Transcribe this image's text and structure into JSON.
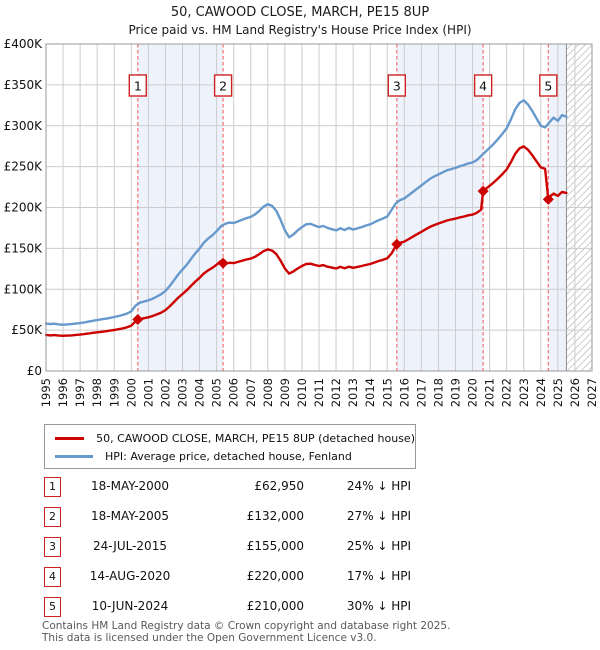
{
  "header": {
    "title": "50, CAWOOD CLOSE, MARCH, PE15 8UP",
    "subtitle": "Price paid vs. HM Land Registry's House Price Index (HPI)"
  },
  "chart_data": {
    "type": "line",
    "title": "50, CAWOOD CLOSE, MARCH, PE15 8UP",
    "subtitle": "Price paid vs. HM Land Registry's House Price Index (HPI)",
    "xlim": [
      1995,
      2027
    ],
    "ylim": [
      0,
      400000
    ],
    "grid": true,
    "legend_position": "below",
    "y_ticks": [
      {
        "value": 0,
        "label": "£0"
      },
      {
        "value": 50000,
        "label": "£50K"
      },
      {
        "value": 100000,
        "label": "£100K"
      },
      {
        "value": 150000,
        "label": "£150K"
      },
      {
        "value": 200000,
        "label": "£200K"
      },
      {
        "value": 250000,
        "label": "£250K"
      },
      {
        "value": 300000,
        "label": "£300K"
      },
      {
        "value": 350000,
        "label": "£350K"
      },
      {
        "value": 400000,
        "label": "£400K"
      }
    ],
    "x_ticks": [
      1995,
      1996,
      1997,
      1998,
      1999,
      2000,
      2001,
      2002,
      2003,
      2004,
      2005,
      2006,
      2007,
      2008,
      2009,
      2010,
      2011,
      2012,
      2013,
      2014,
      2015,
      2016,
      2017,
      2018,
      2019,
      2020,
      2021,
      2022,
      2023,
      2024,
      2025,
      2026,
      2027
    ],
    "shaded_periods": [
      [
        2000.38,
        2005.38
      ],
      [
        2015.56,
        2020.62
      ],
      [
        2024.44,
        2025.5
      ]
    ],
    "future_region": {
      "start": 2025.5,
      "end": 2027
    },
    "colors": {
      "property": "#cc0000",
      "hpi": "#6699cc",
      "sale_line": "#f47a7a",
      "band": "#eef2fb",
      "grid": "#cccccc",
      "border": "#999999",
      "hatch": "#c4c4c4"
    },
    "sales": [
      {
        "label": "1",
        "year": 2000.38,
        "price": 62950
      },
      {
        "label": "2",
        "year": 2005.38,
        "price": 132000
      },
      {
        "label": "3",
        "year": 2015.56,
        "price": 155000
      },
      {
        "label": "4",
        "year": 2020.62,
        "price": 220000
      },
      {
        "label": "5",
        "year": 2024.44,
        "price": 210000
      }
    ],
    "series": [
      {
        "name": "HPI: Average price, detached house, Fenland",
        "color": "#6699cc",
        "points": [
          [
            1995,
            58000
          ],
          [
            1995.25,
            57400
          ],
          [
            1995.5,
            57800
          ],
          [
            1995.75,
            57000
          ],
          [
            1996,
            56600
          ],
          [
            1996.25,
            57000
          ],
          [
            1996.5,
            57400
          ],
          [
            1996.75,
            58000
          ],
          [
            1997,
            58600
          ],
          [
            1997.25,
            59400
          ],
          [
            1997.5,
            60400
          ],
          [
            1997.75,
            61400
          ],
          [
            1998,
            62400
          ],
          [
            1998.25,
            63200
          ],
          [
            1998.5,
            64000
          ],
          [
            1998.75,
            65000
          ],
          [
            1999,
            66000
          ],
          [
            1999.25,
            67200
          ],
          [
            1999.5,
            68600
          ],
          [
            1999.75,
            70200
          ],
          [
            2000,
            73000
          ],
          [
            2000.25,
            80000
          ],
          [
            2000.5,
            83500
          ],
          [
            2000.75,
            85000
          ],
          [
            2001,
            86500
          ],
          [
            2001.25,
            88500
          ],
          [
            2001.5,
            91000
          ],
          [
            2001.75,
            94000
          ],
          [
            2002,
            98000
          ],
          [
            2002.25,
            104000
          ],
          [
            2002.5,
            111000
          ],
          [
            2002.75,
            118000
          ],
          [
            2003,
            124000
          ],
          [
            2003.25,
            130000
          ],
          [
            2003.5,
            137000
          ],
          [
            2003.75,
            144000
          ],
          [
            2004,
            150000
          ],
          [
            2004.25,
            157000
          ],
          [
            2004.5,
            162000
          ],
          [
            2004.75,
            166000
          ],
          [
            2005,
            171000
          ],
          [
            2005.25,
            177000
          ],
          [
            2005.5,
            180000
          ],
          [
            2005.75,
            181500
          ],
          [
            2006,
            181000
          ],
          [
            2006.25,
            183000
          ],
          [
            2006.5,
            185000
          ],
          [
            2006.75,
            187000
          ],
          [
            2007,
            188500
          ],
          [
            2007.25,
            191500
          ],
          [
            2007.5,
            196000
          ],
          [
            2007.75,
            201000
          ],
          [
            2008,
            204000
          ],
          [
            2008.25,
            202000
          ],
          [
            2008.5,
            196000
          ],
          [
            2008.75,
            185000
          ],
          [
            2009,
            172000
          ],
          [
            2009.25,
            163500
          ],
          [
            2009.5,
            167000
          ],
          [
            2009.75,
            172000
          ],
          [
            2010,
            176000
          ],
          [
            2010.25,
            179500
          ],
          [
            2010.5,
            180000
          ],
          [
            2010.75,
            178000
          ],
          [
            2011,
            176000
          ],
          [
            2011.25,
            177500
          ],
          [
            2011.5,
            175000
          ],
          [
            2011.75,
            173500
          ],
          [
            2012,
            172000
          ],
          [
            2012.25,
            174500
          ],
          [
            2012.5,
            172500
          ],
          [
            2012.75,
            175000
          ],
          [
            2013,
            173000
          ],
          [
            2013.25,
            174500
          ],
          [
            2013.5,
            176000
          ],
          [
            2013.75,
            178000
          ],
          [
            2014,
            179500
          ],
          [
            2014.25,
            182000
          ],
          [
            2014.5,
            184500
          ],
          [
            2014.75,
            186500
          ],
          [
            2015,
            189000
          ],
          [
            2015.25,
            197000
          ],
          [
            2015.5,
            205000
          ],
          [
            2015.75,
            209000
          ],
          [
            2016,
            211000
          ],
          [
            2016.25,
            215000
          ],
          [
            2016.5,
            219000
          ],
          [
            2016.75,
            223000
          ],
          [
            2017,
            227000
          ],
          [
            2017.25,
            231000
          ],
          [
            2017.5,
            235000
          ],
          [
            2017.75,
            238000
          ],
          [
            2018,
            240500
          ],
          [
            2018.25,
            243000
          ],
          [
            2018.5,
            245500
          ],
          [
            2018.75,
            247000
          ],
          [
            2019,
            248500
          ],
          [
            2019.25,
            250500
          ],
          [
            2019.5,
            252000
          ],
          [
            2019.75,
            254000
          ],
          [
            2020,
            255000
          ],
          [
            2020.25,
            258000
          ],
          [
            2020.5,
            263000
          ],
          [
            2020.75,
            268000
          ],
          [
            2021,
            273000
          ],
          [
            2021.25,
            278000
          ],
          [
            2021.5,
            284000
          ],
          [
            2021.75,
            290000
          ],
          [
            2022,
            297000
          ],
          [
            2022.25,
            308000
          ],
          [
            2022.5,
            320000
          ],
          [
            2022.75,
            328000
          ],
          [
            2023,
            331000
          ],
          [
            2023.25,
            326000
          ],
          [
            2023.5,
            318000
          ],
          [
            2023.75,
            309000
          ],
          [
            2024,
            300000
          ],
          [
            2024.25,
            298000
          ],
          [
            2024.5,
            304000
          ],
          [
            2024.75,
            310000
          ],
          [
            2025,
            306000
          ],
          [
            2025.25,
            313000
          ],
          [
            2025.5,
            311000
          ]
        ]
      },
      {
        "name": "50, CAWOOD CLOSE, MARCH, PE15 8UP (detached house)",
        "color": "#cc0000",
        "points": [
          [
            1995,
            44100
          ],
          [
            1995.25,
            43600
          ],
          [
            1995.5,
            43900
          ],
          [
            1995.75,
            43300
          ],
          [
            1996,
            43000
          ],
          [
            1996.25,
            43300
          ],
          [
            1996.5,
            43600
          ],
          [
            1996.75,
            44100
          ],
          [
            1997,
            44500
          ],
          [
            1997.25,
            45100
          ],
          [
            1997.5,
            45900
          ],
          [
            1997.75,
            46700
          ],
          [
            1998,
            47400
          ],
          [
            1998.25,
            48000
          ],
          [
            1998.5,
            48600
          ],
          [
            1998.75,
            49400
          ],
          [
            1999,
            50200
          ],
          [
            1999.25,
            51100
          ],
          [
            1999.5,
            52100
          ],
          [
            1999.75,
            53400
          ],
          [
            2000,
            55500
          ],
          [
            2000.25,
            60800
          ],
          [
            2000.38,
            62950
          ],
          [
            2000.5,
            63500
          ],
          [
            2000.75,
            64600
          ],
          [
            2001,
            65700
          ],
          [
            2001.25,
            67300
          ],
          [
            2001.5,
            69200
          ],
          [
            2001.75,
            71400
          ],
          [
            2002,
            74500
          ],
          [
            2002.25,
            79000
          ],
          [
            2002.5,
            84400
          ],
          [
            2002.75,
            89700
          ],
          [
            2003,
            94200
          ],
          [
            2003.25,
            98800
          ],
          [
            2003.5,
            104100
          ],
          [
            2003.75,
            109400
          ],
          [
            2004,
            114000
          ],
          [
            2004.25,
            119300
          ],
          [
            2004.5,
            123100
          ],
          [
            2004.75,
            126200
          ],
          [
            2005,
            130000
          ],
          [
            2005.25,
            134500
          ],
          [
            2005.38,
            132000
          ],
          [
            2005.5,
            131300
          ],
          [
            2005.75,
            132400
          ],
          [
            2006,
            132000
          ],
          [
            2006.25,
            133500
          ],
          [
            2006.5,
            134900
          ],
          [
            2006.75,
            136400
          ],
          [
            2007,
            137500
          ],
          [
            2007.25,
            139700
          ],
          [
            2007.5,
            143000
          ],
          [
            2007.75,
            146600
          ],
          [
            2008,
            148800
          ],
          [
            2008.25,
            147300
          ],
          [
            2008.5,
            143000
          ],
          [
            2008.75,
            134900
          ],
          [
            2009,
            125400
          ],
          [
            2009.25,
            119200
          ],
          [
            2009.5,
            121800
          ],
          [
            2009.75,
            125400
          ],
          [
            2010,
            128400
          ],
          [
            2010.25,
            130900
          ],
          [
            2010.5,
            131300
          ],
          [
            2010.75,
            129800
          ],
          [
            2011,
            128400
          ],
          [
            2011.25,
            129500
          ],
          [
            2011.5,
            127600
          ],
          [
            2011.75,
            126500
          ],
          [
            2012,
            125400
          ],
          [
            2012.25,
            127300
          ],
          [
            2012.5,
            125800
          ],
          [
            2012.75,
            127600
          ],
          [
            2013,
            126200
          ],
          [
            2013.25,
            127300
          ],
          [
            2013.5,
            128400
          ],
          [
            2013.75,
            129800
          ],
          [
            2014,
            130900
          ],
          [
            2014.25,
            132700
          ],
          [
            2014.5,
            134600
          ],
          [
            2014.75,
            136000
          ],
          [
            2015,
            137900
          ],
          [
            2015.25,
            143700
          ],
          [
            2015.56,
            155000
          ],
          [
            2015.75,
            156800
          ],
          [
            2016,
            158300
          ],
          [
            2016.25,
            161300
          ],
          [
            2016.5,
            164300
          ],
          [
            2016.75,
            167300
          ],
          [
            2017,
            170300
          ],
          [
            2017.25,
            173300
          ],
          [
            2017.5,
            176300
          ],
          [
            2017.75,
            178500
          ],
          [
            2018,
            180400
          ],
          [
            2018.25,
            182300
          ],
          [
            2018.5,
            184100
          ],
          [
            2018.75,
            185300
          ],
          [
            2019,
            186400
          ],
          [
            2019.25,
            187900
          ],
          [
            2019.5,
            189000
          ],
          [
            2019.75,
            190500
          ],
          [
            2020,
            191300
          ],
          [
            2020.25,
            193500
          ],
          [
            2020.5,
            197300
          ],
          [
            2020.62,
            220000
          ],
          [
            2020.75,
            222400
          ],
          [
            2021,
            226600
          ],
          [
            2021.25,
            230800
          ],
          [
            2021.5,
            235800
          ],
          [
            2021.75,
            240800
          ],
          [
            2022,
            246600
          ],
          [
            2022.25,
            255700
          ],
          [
            2022.5,
            265700
          ],
          [
            2022.75,
            272300
          ],
          [
            2023,
            274800
          ],
          [
            2023.25,
            270600
          ],
          [
            2023.5,
            264000
          ],
          [
            2023.75,
            256500
          ],
          [
            2024,
            249100
          ],
          [
            2024.25,
            247400
          ],
          [
            2024.44,
            210000
          ],
          [
            2024.5,
            212800
          ],
          [
            2024.75,
            217000
          ],
          [
            2025,
            214200
          ],
          [
            2025.25,
            219100
          ],
          [
            2025.5,
            217700
          ]
        ]
      }
    ]
  },
  "legend": {
    "items": [
      {
        "label": "50, CAWOOD CLOSE, MARCH, PE15 8UP (detached house)",
        "color": "#cc0000"
      },
      {
        "label": "HPI: Average price, detached house, Fenland",
        "color": "#6699cc"
      }
    ]
  },
  "table": {
    "rows": [
      {
        "num": "1",
        "date": "18-MAY-2000",
        "price": "£62,950",
        "vs_hpi": "24% ↓ HPI"
      },
      {
        "num": "2",
        "date": "18-MAY-2005",
        "price": "£132,000",
        "vs_hpi": "27% ↓ HPI"
      },
      {
        "num": "3",
        "date": "24-JUL-2015",
        "price": "£155,000",
        "vs_hpi": "25% ↓ HPI"
      },
      {
        "num": "4",
        "date": "14-AUG-2020",
        "price": "£220,000",
        "vs_hpi": "17% ↓ HPI"
      },
      {
        "num": "5",
        "date": "10-JUN-2024",
        "price": "£210,000",
        "vs_hpi": "30% ↓ HPI"
      }
    ]
  },
  "footer": {
    "line1": "Contains HM Land Registry data © Crown copyright and database right 2025.",
    "line2": "This data is licensed under the Open Government Licence v3.0."
  }
}
